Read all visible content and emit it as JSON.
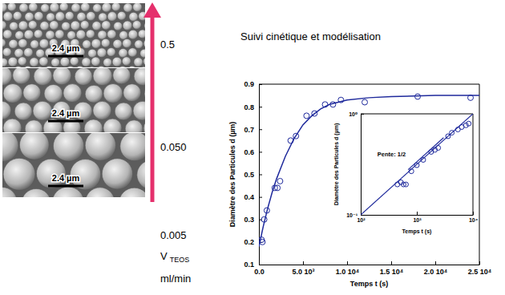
{
  "sem_panel": {
    "scale_bars": [
      "2.4 µm",
      "2.4 µm",
      "2.4 µm"
    ],
    "flow_rates": [
      "0.5",
      "0.050",
      "0.005"
    ],
    "flow_label": "V",
    "flow_label_sub": "TEOS",
    "flow_unit": "ml/min"
  },
  "chart_data": [
    {
      "type": "scatter",
      "title": "Suivi cinétique et modélisation",
      "x_label": "Temps t (s)",
      "y_label": "Diamètre des Particules d (µm)",
      "xlim": [
        0,
        25000
      ],
      "ylim": [
        0.1,
        0.9
      ],
      "xticks": [
        {
          "value": 0,
          "label": "0.0"
        },
        {
          "value": 5000,
          "label": "5.0 10³"
        },
        {
          "value": 10000,
          "label": "1.0 10⁴"
        },
        {
          "value": 15000,
          "label": "1.5 10⁴"
        },
        {
          "value": 20000,
          "label": "2.0 10⁴"
        },
        {
          "value": 25000,
          "label": "2.5 10⁴"
        }
      ],
      "yticks": [
        0.1,
        0.2,
        0.3,
        0.4,
        0.5,
        0.6,
        0.7,
        0.8,
        0.9
      ],
      "series": [
        {
          "type": "scatter",
          "marker": "circle",
          "color": "#1f2a9c",
          "x": [
            300,
            400,
            600,
            900,
            1800,
            2100,
            2400,
            3600,
            4200,
            5400,
            6300,
            7500,
            8400,
            9300,
            12000,
            18000,
            24000
          ],
          "values": [
            0.21,
            0.2,
            0.3,
            0.34,
            0.44,
            0.44,
            0.47,
            0.65,
            0.67,
            0.76,
            0.77,
            0.81,
            0.81,
            0.83,
            0.82,
            0.845,
            0.84
          ]
        },
        {
          "type": "line",
          "line_style": "solid",
          "color": "#1f2a9c",
          "x": [
            0,
            500,
            1000,
            1500,
            2000,
            2500,
            3000,
            4000,
            5000,
            6000,
            7000,
            8000,
            10000,
            12500,
            15000,
            20000,
            25000
          ],
          "values": [
            0.18,
            0.27,
            0.35,
            0.42,
            0.48,
            0.53,
            0.58,
            0.66,
            0.72,
            0.76,
            0.79,
            0.81,
            0.83,
            0.84,
            0.845,
            0.85,
            0.85
          ]
        }
      ]
    },
    {
      "type": "scatter",
      "log": true,
      "x_label": "Temps t (s)",
      "y_label": "Diamètre des Particules d (µm)",
      "xlim": [
        100,
        10000
      ],
      "ylim": [
        0.1,
        1
      ],
      "xticks": [
        {
          "value": 100,
          "label": "10²"
        },
        {
          "value": 1000,
          "label": "10³"
        },
        {
          "value": 10000,
          "label": "10⁴"
        }
      ],
      "yticks": [
        {
          "value": 0.1,
          "label": "10⁻¹"
        },
        {
          "value": 1,
          "label": "10⁰"
        }
      ],
      "annotations": [
        "Pente: 1/2"
      ],
      "series": [
        {
          "type": "scatter",
          "marker": "circle",
          "color": "#1f2a9c",
          "x": [
            450,
            520,
            580,
            640,
            800,
            1000,
            1300,
            1800,
            2100,
            2400,
            3600,
            4200,
            5400,
            6300,
            7500,
            8400
          ],
          "values": [
            0.2,
            0.21,
            0.2,
            0.2,
            0.27,
            0.31,
            0.35,
            0.42,
            0.44,
            0.46,
            0.6,
            0.65,
            0.7,
            0.74,
            0.77,
            0.8
          ]
        },
        {
          "type": "line",
          "line_style": "solid",
          "color": "#1f2a9c",
          "x": [
            100,
            10000
          ],
          "values": [
            0.1,
            1
          ]
        },
        {
          "type": "line",
          "line_style": "solid",
          "color": "#1f2a9c",
          "x": [
            700,
            3000
          ],
          "values": [
            0.28,
            0.58
          ]
        }
      ]
    }
  ]
}
